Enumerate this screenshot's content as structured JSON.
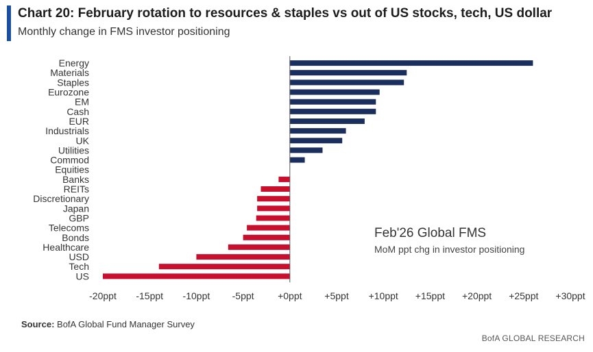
{
  "header": {
    "title": "Chart 20: February rotation to resources & staples vs out of US stocks, tech, US dollar",
    "subtitle": "Monthly change in FMS investor positioning"
  },
  "footer": {
    "source_label": "Source:",
    "source_text": "BofA Global Fund Manager Survey",
    "brand": "BofA GLOBAL RESEARCH"
  },
  "colors": {
    "positive": "#1b2f5e",
    "negative": "#c8102e",
    "accent": "#1a4fa0"
  },
  "chart_data": {
    "type": "bar",
    "orientation": "horizontal",
    "annotation_title": "Feb'26 Global FMS",
    "annotation_subtitle": "MoM ppt chg in investor positioning",
    "categories": [
      "Energy",
      "Materials",
      "Staples",
      "Eurozone",
      "EM",
      "Cash",
      "EUR",
      "Industrials",
      "UK",
      "Utilities",
      "Commod",
      "Equities",
      "Banks",
      "REITs",
      "Discretionary",
      "Japan",
      "GBP",
      "Telecoms",
      "Bonds",
      "Healthcare",
      "USD",
      "Tech",
      "US"
    ],
    "values": [
      26,
      12.5,
      12.2,
      9.6,
      9.2,
      9.2,
      8,
      6,
      5.6,
      3.5,
      1.6,
      0,
      -1.2,
      -3.1,
      -3.5,
      -3.5,
      -3.6,
      -4.6,
      -5,
      -6.6,
      -10,
      -14,
      -20
    ],
    "xlim": [
      -20,
      30
    ],
    "xticks": [
      -20,
      -15,
      -10,
      -5,
      0,
      5,
      10,
      15,
      20,
      25,
      30
    ],
    "xtick_labels": [
      "-20ppt",
      "-15ppt",
      "-10ppt",
      "-5ppt",
      "+0ppt",
      "+5ppt",
      "+10ppt",
      "+15ppt",
      "+20ppt",
      "+25ppt",
      "+30ppt"
    ],
    "grid": false,
    "legend": "none"
  }
}
